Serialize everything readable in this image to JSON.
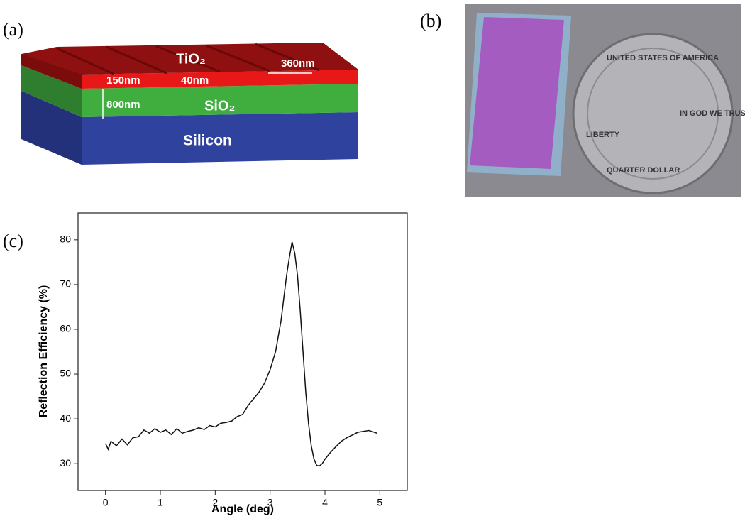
{
  "panel_labels": [
    "(a)",
    "(b)",
    "(c)"
  ],
  "diagram": {
    "layers": [
      "TiO₂",
      "SiO₂",
      "Silicon"
    ],
    "dimensions": [
      "360nm",
      "150nm",
      "40nm",
      "800nm"
    ]
  },
  "photo": {
    "coin_texts": [
      "UNITED STATES OF AMERICA",
      "LIBERTY",
      "IN GOD WE TRUST",
      "QUARTER DOLLAR"
    ]
  },
  "chart_data": {
    "type": "line",
    "xlabel": "Angle (deg)",
    "ylabel": "Reflection Efficiency (%)",
    "xlim": [
      -0.5,
      5.5
    ],
    "ylim": [
      24,
      86
    ],
    "xticks": [
      0,
      1,
      2,
      3,
      4,
      5
    ],
    "yticks": [
      30,
      40,
      50,
      60,
      70,
      80
    ],
    "color": "#111111",
    "x": [
      0,
      0.05,
      0.1,
      0.2,
      0.3,
      0.4,
      0.5,
      0.6,
      0.7,
      0.8,
      0.9,
      1.0,
      1.1,
      1.2,
      1.3,
      1.4,
      1.5,
      1.6,
      1.7,
      1.8,
      1.9,
      2.0,
      2.1,
      2.2,
      2.3,
      2.4,
      2.5,
      2.6,
      2.7,
      2.8,
      2.9,
      3.0,
      3.1,
      3.2,
      3.25,
      3.3,
      3.35,
      3.4,
      3.45,
      3.5,
      3.55,
      3.6,
      3.65,
      3.7,
      3.75,
      3.8,
      3.85,
      3.9,
      3.95,
      4.0,
      4.1,
      4.2,
      4.3,
      4.4,
      4.5,
      4.6,
      4.7,
      4.8,
      4.9,
      4.95
    ],
    "values": [
      34.5,
      33.2,
      35,
      34,
      35.5,
      34.2,
      35.8,
      36,
      37.5,
      36.8,
      37.8,
      37,
      37.5,
      36.5,
      37.8,
      36.8,
      37.2,
      37.5,
      38,
      37.6,
      38.5,
      38.2,
      39,
      39.2,
      39.5,
      40.5,
      41,
      43,
      44.5,
      46,
      48,
      51,
      55,
      62,
      67,
      72,
      76,
      79.5,
      77,
      72,
      64,
      55,
      46,
      39,
      34,
      31,
      29.6,
      29.5,
      30,
      31,
      32.5,
      33.8,
      35,
      35.8,
      36.4,
      37,
      37.2,
      37.4,
      37,
      36.8
    ]
  }
}
